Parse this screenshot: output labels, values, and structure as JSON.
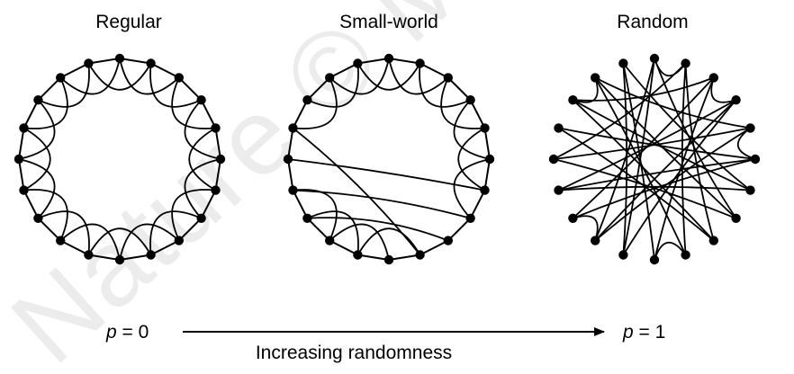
{
  "diagram": {
    "node_count": 20,
    "panels": [
      {
        "id": "regular",
        "title": "Regular",
        "rewired_edges": []
      },
      {
        "id": "small-world",
        "title": "Small-world",
        "rewired_edges": [
          [
            14,
            7
          ],
          [
            15,
            6
          ],
          [
            13,
            8
          ],
          [
            16,
            9
          ]
        ]
      },
      {
        "id": "random",
        "title": "Random",
        "rewired_edges": [
          [
            0,
            7
          ],
          [
            0,
            12
          ],
          [
            1,
            9
          ],
          [
            1,
            15
          ],
          [
            2,
            10
          ],
          [
            2,
            17
          ],
          [
            3,
            11
          ],
          [
            3,
            14
          ],
          [
            4,
            12
          ],
          [
            4,
            18
          ],
          [
            5,
            13
          ],
          [
            5,
            16
          ],
          [
            6,
            14
          ],
          [
            6,
            19
          ],
          [
            7,
            15
          ],
          [
            8,
            17
          ],
          [
            8,
            1
          ],
          [
            9,
            18
          ],
          [
            10,
            19
          ],
          [
            11,
            0
          ],
          [
            12,
            3
          ],
          [
            13,
            2
          ],
          [
            14,
            5
          ],
          [
            15,
            4
          ],
          [
            16,
            8
          ],
          [
            17,
            6
          ],
          [
            18,
            7
          ],
          [
            19,
            11
          ]
        ]
      }
    ],
    "left_value": {
      "symbol": "p",
      "text": " = 0"
    },
    "right_value": {
      "symbol": "p",
      "text": " = 1"
    },
    "axis_label": "Increasing randomness",
    "watermark": "Nature © Macmillan",
    "colors": {
      "edge": "#000000",
      "node": "#000000",
      "background": "#ffffff"
    }
  }
}
